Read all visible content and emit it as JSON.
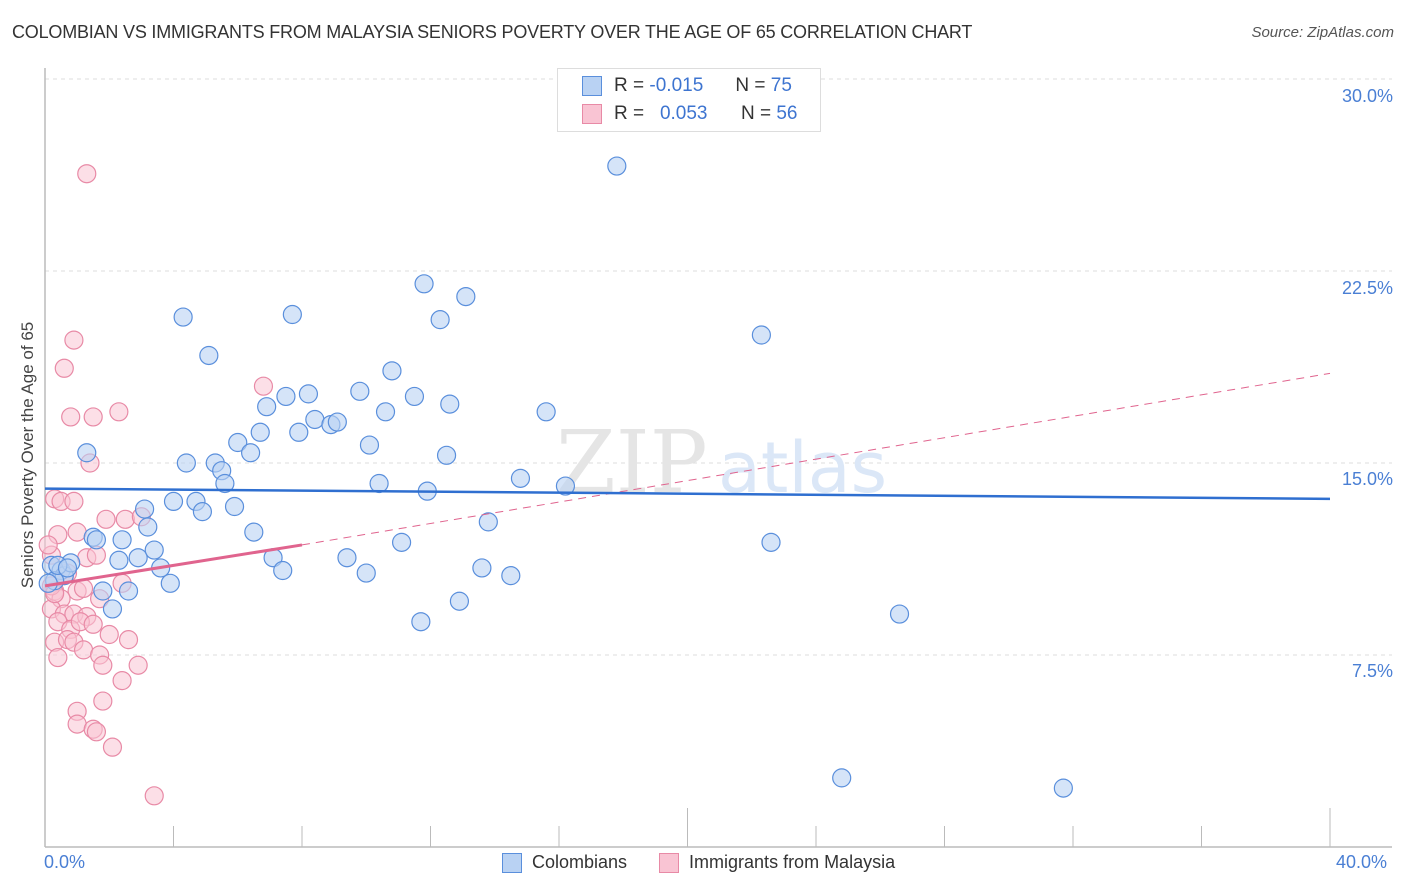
{
  "header": {
    "title": "COLOMBIAN VS IMMIGRANTS FROM MALAYSIA SENIORS POVERTY OVER THE AGE OF 65 CORRELATION CHART",
    "source": "Source: ZipAtlas.com"
  },
  "legend": {
    "rows": [
      {
        "r_label": "R =",
        "r_value": "-0.015",
        "n_label": "N =",
        "n_value": "75"
      },
      {
        "r_label": "R =",
        "r_value": "0.053",
        "n_label": "N =",
        "n_value": "56"
      }
    ],
    "series": [
      "Colombians",
      "Immigrants from Malaysia"
    ]
  },
  "axes": {
    "ylabel": "Seniors Poverty Over the Age of 65",
    "y_ticks": [
      "30.0%",
      "22.5%",
      "15.0%",
      "7.5%"
    ],
    "x_ticks": [
      "0.0%",
      "40.0%"
    ]
  },
  "colors": {
    "blue_fill": "#b9d2f3",
    "blue_stroke": "#5a8fdc",
    "blue_line": "#2f6fd0",
    "pink_fill": "#f9c4d3",
    "pink_stroke": "#e88aa6",
    "pink_line": "#e0648e",
    "tick_text": "#4a7fd4"
  },
  "chart_data": {
    "type": "scatter",
    "title": "COLOMBIAN VS IMMIGRANTS FROM MALAYSIA SENIORS POVERTY OVER THE AGE OF 65 CORRELATION CHART",
    "xlabel": "",
    "ylabel": "Seniors Poverty Over the Age of 65",
    "xlim": [
      0,
      40
    ],
    "ylim": [
      0,
      30.7
    ],
    "x_tick_labels": [
      "0.0%",
      "40.0%"
    ],
    "y_tick_labels": [
      "7.5%",
      "15.0%",
      "22.5%",
      "30.0%"
    ],
    "grid": true,
    "legend_position": "top-center and bottom",
    "series": [
      {
        "name": "Colombians",
        "R": -0.015,
        "N": 75,
        "trend": {
          "x": [
            0,
            40
          ],
          "y": [
            14.0,
            13.6
          ]
        },
        "points": [
          [
            0.2,
            11.0
          ],
          [
            0.5,
            10.8
          ],
          [
            0.6,
            10.6
          ],
          [
            0.8,
            11.1
          ],
          [
            0.3,
            10.4
          ],
          [
            1.3,
            15.4
          ],
          [
            1.5,
            12.1
          ],
          [
            1.6,
            12.0
          ],
          [
            1.8,
            10.0
          ],
          [
            2.1,
            9.3
          ],
          [
            2.3,
            11.2
          ],
          [
            2.4,
            12.0
          ],
          [
            2.6,
            10.0
          ],
          [
            2.9,
            11.3
          ],
          [
            3.1,
            13.2
          ],
          [
            3.2,
            12.5
          ],
          [
            3.4,
            11.6
          ],
          [
            3.6,
            10.9
          ],
          [
            3.9,
            10.3
          ],
          [
            4.0,
            13.5
          ],
          [
            4.3,
            20.7
          ],
          [
            4.4,
            15.0
          ],
          [
            4.7,
            13.5
          ],
          [
            4.9,
            13.1
          ],
          [
            5.1,
            19.2
          ],
          [
            5.3,
            15.0
          ],
          [
            5.5,
            14.7
          ],
          [
            5.6,
            14.2
          ],
          [
            5.9,
            13.3
          ],
          [
            6.0,
            15.8
          ],
          [
            6.4,
            15.4
          ],
          [
            6.5,
            12.3
          ],
          [
            6.7,
            16.2
          ],
          [
            6.9,
            17.2
          ],
          [
            7.1,
            11.3
          ],
          [
            7.4,
            10.8
          ],
          [
            7.5,
            17.6
          ],
          [
            7.7,
            20.8
          ],
          [
            7.9,
            16.2
          ],
          [
            8.2,
            17.7
          ],
          [
            8.4,
            16.7
          ],
          [
            8.9,
            16.5
          ],
          [
            9.1,
            16.6
          ],
          [
            9.4,
            11.3
          ],
          [
            9.8,
            17.8
          ],
          [
            10.0,
            10.7
          ],
          [
            10.1,
            15.7
          ],
          [
            10.4,
            14.2
          ],
          [
            10.6,
            17.0
          ],
          [
            10.8,
            18.6
          ],
          [
            11.1,
            11.9
          ],
          [
            11.5,
            17.6
          ],
          [
            11.7,
            8.8
          ],
          [
            11.9,
            13.9
          ],
          [
            11.8,
            22.0
          ],
          [
            12.3,
            20.6
          ],
          [
            12.5,
            15.3
          ],
          [
            12.6,
            17.3
          ],
          [
            12.9,
            9.6
          ],
          [
            13.1,
            21.5
          ],
          [
            13.6,
            10.9
          ],
          [
            13.8,
            12.7
          ],
          [
            14.5,
            10.6
          ],
          [
            14.8,
            14.4
          ],
          [
            15.6,
            17.0
          ],
          [
            16.2,
            14.1
          ],
          [
            17.8,
            26.6
          ],
          [
            22.3,
            20.0
          ],
          [
            22.6,
            11.9
          ],
          [
            24.8,
            2.7
          ],
          [
            26.6,
            9.1
          ],
          [
            31.7,
            2.3
          ],
          [
            0.1,
            10.3
          ],
          [
            0.4,
            11.0
          ],
          [
            0.7,
            10.9
          ]
        ]
      },
      {
        "name": "Immigrants from Malaysia",
        "R": 0.053,
        "N": 56,
        "trend_solid": {
          "x": [
            0,
            8.0
          ],
          "y": [
            10.2,
            11.8
          ]
        },
        "trend_dashed": {
          "x": [
            8.0,
            40
          ],
          "y": [
            11.8,
            18.5
          ]
        },
        "points": [
          [
            1.3,
            26.3
          ],
          [
            0.6,
            18.7
          ],
          [
            0.9,
            19.8
          ],
          [
            0.8,
            16.8
          ],
          [
            1.5,
            16.8
          ],
          [
            2.3,
            17.0
          ],
          [
            1.4,
            15.0
          ],
          [
            0.3,
            13.6
          ],
          [
            0.5,
            13.5
          ],
          [
            0.9,
            13.5
          ],
          [
            1.0,
            12.3
          ],
          [
            0.4,
            12.2
          ],
          [
            1.3,
            11.3
          ],
          [
            0.2,
            11.4
          ],
          [
            1.6,
            11.4
          ],
          [
            0.7,
            10.7
          ],
          [
            0.3,
            10.0
          ],
          [
            1.0,
            10.0
          ],
          [
            0.5,
            9.7
          ],
          [
            1.7,
            9.7
          ],
          [
            0.2,
            9.3
          ],
          [
            0.6,
            9.1
          ],
          [
            0.9,
            9.1
          ],
          [
            1.3,
            9.0
          ],
          [
            0.4,
            8.8
          ],
          [
            0.8,
            8.5
          ],
          [
            1.1,
            8.8
          ],
          [
            1.5,
            8.7
          ],
          [
            0.3,
            8.0
          ],
          [
            0.7,
            8.1
          ],
          [
            0.9,
            8.0
          ],
          [
            1.2,
            7.7
          ],
          [
            1.7,
            7.5
          ],
          [
            2.0,
            8.3
          ],
          [
            2.6,
            8.1
          ],
          [
            0.4,
            7.4
          ],
          [
            1.8,
            7.1
          ],
          [
            2.9,
            7.1
          ],
          [
            2.4,
            6.5
          ],
          [
            1.8,
            5.7
          ],
          [
            1.0,
            5.3
          ],
          [
            1.0,
            4.8
          ],
          [
            1.5,
            4.6
          ],
          [
            1.6,
            4.5
          ],
          [
            2.1,
            3.9
          ],
          [
            3.4,
            2.0
          ],
          [
            2.5,
            12.8
          ],
          [
            3.0,
            12.9
          ],
          [
            1.9,
            12.8
          ],
          [
            2.4,
            10.3
          ],
          [
            6.8,
            18.0
          ],
          [
            0.1,
            11.8
          ],
          [
            0.2,
            10.2
          ],
          [
            0.6,
            10.6
          ],
          [
            1.2,
            10.1
          ],
          [
            0.3,
            9.9
          ]
        ]
      }
    ]
  }
}
